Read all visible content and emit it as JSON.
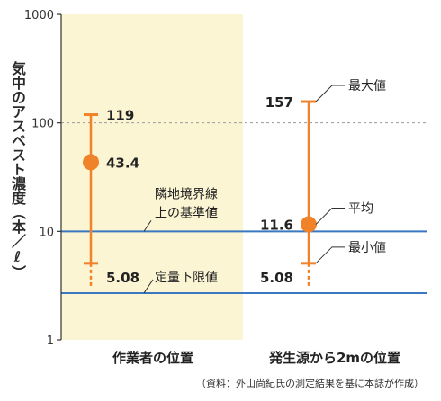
{
  "chart_data": {
    "type": "range",
    "scale": "log",
    "ylim": [
      1,
      1000
    ],
    "yticks": [
      "1000",
      "100",
      "10",
      "1"
    ],
    "ylabel": "気中のアスベスト濃度（本／ℓ）",
    "categories": [
      "作業者の位置",
      "発生源から2mの位置"
    ],
    "series": [
      {
        "max": 119,
        "max_label": "119",
        "avg": 43.4,
        "avg_label": "43.4",
        "min": 5.08,
        "min_label": "5.08"
      },
      {
        "max": 157,
        "max_label": "157",
        "avg": 11.6,
        "avg_label": "11.6",
        "min": 5.08,
        "min_label": "5.08"
      }
    ],
    "reference_lines": [
      {
        "value": 10,
        "label_lines": [
          "隣地境界線",
          "上の基準値"
        ],
        "color": "#3a78c2"
      },
      {
        "value": 2.7,
        "label": "定量下限値",
        "color": "#3a78c2"
      },
      {
        "value": 100,
        "dashed": true,
        "color": "#9a9a9a"
      }
    ],
    "annotations": {
      "max": "最大値",
      "avg": "平均",
      "min": "最小値"
    },
    "source": "（資料：外山尚紀氏の測定結果を基に本誌が作成）",
    "colors": {
      "marker": "#f0832a",
      "reference": "#3a78c2",
      "highlight_band": "#fbf5d3",
      "axis": "#333333"
    }
  }
}
